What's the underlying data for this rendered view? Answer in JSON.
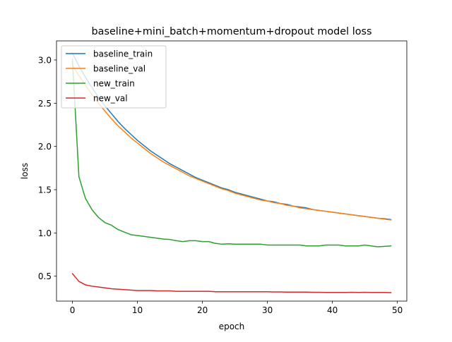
{
  "chart_data": {
    "type": "line",
    "title": "baseline+mini_batch+momentum+dropout model loss",
    "xlabel": "epoch",
    "ylabel": "loss",
    "xlim": [
      -2.45,
      51.45
    ],
    "ylim": [
      0.2123,
      3.2201
    ],
    "xticks": [
      0,
      10,
      20,
      30,
      40,
      50
    ],
    "yticks": [
      0.5,
      1.0,
      1.5,
      2.0,
      2.5,
      3.0
    ],
    "xtick_labels": [
      "0",
      "10",
      "20",
      "30",
      "40",
      "50"
    ],
    "ytick_labels": [
      "0.5",
      "1.0",
      "1.5",
      "2.0",
      "2.5",
      "3.0"
    ],
    "grid": false,
    "legend_position": "upper-left",
    "x": [
      0,
      1,
      2,
      3,
      4,
      5,
      6,
      7,
      8,
      9,
      10,
      11,
      12,
      13,
      14,
      15,
      16,
      17,
      18,
      19,
      20,
      21,
      22,
      23,
      24,
      25,
      26,
      27,
      28,
      29,
      30,
      31,
      32,
      33,
      34,
      35,
      36,
      37,
      38,
      39,
      40,
      41,
      42,
      43,
      44,
      45,
      46,
      47,
      48,
      49
    ],
    "series": [
      {
        "name": "baseline_train",
        "color": "#1f77b4",
        "values": [
          3.08,
          2.93,
          2.8,
          2.68,
          2.57,
          2.47,
          2.38,
          2.29,
          2.21,
          2.14,
          2.07,
          2.01,
          1.95,
          1.9,
          1.85,
          1.8,
          1.76,
          1.72,
          1.68,
          1.64,
          1.61,
          1.58,
          1.55,
          1.52,
          1.5,
          1.47,
          1.45,
          1.43,
          1.41,
          1.39,
          1.37,
          1.36,
          1.34,
          1.33,
          1.31,
          1.3,
          1.29,
          1.27,
          1.26,
          1.25,
          1.24,
          1.23,
          1.22,
          1.21,
          1.2,
          1.19,
          1.18,
          1.17,
          1.165,
          1.155
        ]
      },
      {
        "name": "baseline_val",
        "color": "#ff7f0e",
        "values": [
          2.94,
          2.82,
          2.71,
          2.6,
          2.5,
          2.41,
          2.32,
          2.24,
          2.17,
          2.1,
          2.04,
          1.98,
          1.92,
          1.87,
          1.82,
          1.78,
          1.74,
          1.7,
          1.66,
          1.63,
          1.6,
          1.57,
          1.54,
          1.51,
          1.49,
          1.46,
          1.44,
          1.42,
          1.4,
          1.38,
          1.37,
          1.35,
          1.34,
          1.32,
          1.31,
          1.29,
          1.28,
          1.27,
          1.26,
          1.25,
          1.24,
          1.23,
          1.22,
          1.21,
          1.2,
          1.19,
          1.18,
          1.17,
          1.16,
          1.15
        ]
      },
      {
        "name": "new_train",
        "color": "#2ca02c",
        "values": [
          3.01,
          1.65,
          1.4,
          1.27,
          1.18,
          1.12,
          1.09,
          1.04,
          1.01,
          0.98,
          0.97,
          0.96,
          0.95,
          0.94,
          0.93,
          0.925,
          0.91,
          0.9,
          0.91,
          0.91,
          0.9,
          0.9,
          0.88,
          0.87,
          0.875,
          0.87,
          0.87,
          0.87,
          0.87,
          0.87,
          0.86,
          0.86,
          0.86,
          0.86,
          0.86,
          0.86,
          0.85,
          0.85,
          0.85,
          0.86,
          0.86,
          0.86,
          0.85,
          0.85,
          0.85,
          0.86,
          0.85,
          0.84,
          0.845,
          0.85
        ]
      },
      {
        "name": "new_val",
        "color": "#d62728",
        "values": [
          0.53,
          0.44,
          0.4,
          0.385,
          0.375,
          0.365,
          0.355,
          0.35,
          0.345,
          0.34,
          0.335,
          0.335,
          0.335,
          0.33,
          0.33,
          0.33,
          0.325,
          0.325,
          0.325,
          0.325,
          0.325,
          0.325,
          0.32,
          0.32,
          0.32,
          0.32,
          0.32,
          0.32,
          0.32,
          0.32,
          0.32,
          0.318,
          0.318,
          0.316,
          0.316,
          0.316,
          0.316,
          0.314,
          0.314,
          0.312,
          0.312,
          0.312,
          0.312,
          0.314,
          0.312,
          0.314,
          0.312,
          0.312,
          0.312,
          0.31
        ]
      }
    ]
  }
}
